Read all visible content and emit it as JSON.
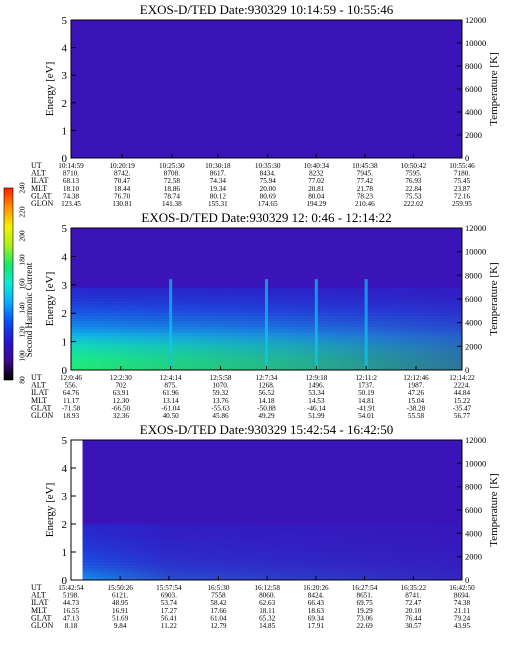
{
  "colorbar": {
    "label": "Second Harmonic Current",
    "ticks": [
      "80",
      "100",
      "120",
      "140",
      "160",
      "180",
      "200",
      "220",
      "240"
    ],
    "colors": [
      "#000000",
      "#3b0a8c",
      "#2a14d0",
      "#0a4cf0",
      "#0aa8ff",
      "#10e8d8",
      "#18e868",
      "#a8f020",
      "#f8f000",
      "#ff9000",
      "#ff2000"
    ]
  },
  "palette": {
    "background": "#3a14b8",
    "low_energy_band": [
      "#1430e0",
      "#0a6cf8",
      "#0ac8f0",
      "#18e890",
      "#30f040"
    ]
  },
  "chart_data": [
    {
      "type": "heatmap",
      "title": "EXOS-D/TED   Date:930329   10:14:59 - 10:55:46",
      "ylabel": "Energy [eV]",
      "y2label": "Temperature [K]",
      "ylim": [
        0,
        5
      ],
      "y2lim": [
        0,
        12000
      ],
      "yticks": [
        "0",
        "1",
        "2",
        "3",
        "4",
        "5"
      ],
      "y2ticks": [
        "0",
        "2000",
        "4000",
        "6000",
        "8000",
        "10000",
        "12000"
      ],
      "intensity_profile": [
        [
          0,
          0.05
        ],
        [
          1,
          0.05
        ],
        [
          2,
          0.05
        ],
        [
          3,
          0.05
        ],
        [
          4,
          0.05
        ],
        [
          5,
          0.05
        ]
      ],
      "gap": null,
      "streaks": [],
      "params": [
        "UT",
        "ALT",
        "ILAT",
        "MLT",
        "GLAT",
        "GLON"
      ],
      "columns": [
        [
          "10:14:59",
          "8710.",
          "68.13",
          "18.10",
          "74.38",
          "123.45"
        ],
        [
          "10:20:19",
          "8742.",
          "70.47",
          "18.44",
          "76.70",
          "130.81"
        ],
        [
          "10:25:30",
          "8708.",
          "72.58",
          "18.86",
          "78.74",
          "141.38"
        ],
        [
          "10:30:18",
          "8617.",
          "74.34",
          "19.34",
          "80.12",
          "155.31"
        ],
        [
          "10:35:30",
          "8434.",
          "75.94",
          "20.00",
          "80.69",
          "174.65"
        ],
        [
          "10:40:34",
          "8232",
          "77.02",
          "20.81",
          "80.04",
          "194.29"
        ],
        [
          "10:45:38",
          "7945.",
          "77.42",
          "21.78",
          "78.23",
          "210.46"
        ],
        [
          "10:50:42",
          "7595.",
          "76.93",
          "22.84",
          "75.53",
          "222.02"
        ],
        [
          "10:55:46",
          "7180.",
          "75.45",
          "23.87",
          "72.16",
          "259.95"
        ]
      ]
    },
    {
      "type": "heatmap",
      "title": "EXOS-D/TED   Date:930329   12: 0:46 - 12:14:22",
      "ylabel": "Energy [eV]",
      "y2label": "Temperature [K]",
      "ylim": [
        0,
        5
      ],
      "y2lim": [
        0,
        12000
      ],
      "yticks": [
        "0",
        "1",
        "2",
        "3",
        "4",
        "5"
      ],
      "y2ticks": [
        "0",
        "2000",
        "4000",
        "6000",
        "8000",
        "10000",
        "12000"
      ],
      "intensity_profile": [
        [
          0,
          0.85
        ],
        [
          0.5,
          0.75
        ],
        [
          1.0,
          0.6
        ],
        [
          1.5,
          0.42
        ],
        [
          2.0,
          0.3
        ],
        [
          2.5,
          0.15
        ],
        [
          3,
          0.05
        ],
        [
          5,
          0.05
        ]
      ],
      "gap": null,
      "streaks": [
        "12:4:14",
        "12:7:34",
        "12:9:18",
        "12:11:2"
      ],
      "params": [
        "UT",
        "ALT",
        "ILAT",
        "MLT",
        "GLAT",
        "GLON"
      ],
      "columns": [
        [
          "12:0:46",
          "556.",
          "64.76",
          "11.17",
          "-71.58",
          "18.93"
        ],
        [
          "12:2:30",
          "702",
          "63.91",
          "12.30",
          "-66.50",
          "32.36"
        ],
        [
          "12:4:14",
          "875.",
          "61.96",
          "13.14",
          "-61.04",
          "40.50"
        ],
        [
          "12:5:58",
          "1070.",
          "59.32",
          "13.76",
          "-55.63",
          "45.86"
        ],
        [
          "12:7:34",
          "1268.",
          "56.52",
          "14.18",
          "-50.88",
          "49.29"
        ],
        [
          "12:9:18",
          "1496.",
          "53.34",
          "14.53",
          "-46.14",
          "51.99"
        ],
        [
          "12:11:2",
          "1737.",
          "50.19",
          "14.81",
          "-41.91",
          "54.01"
        ],
        [
          "12:12:46",
          "1987.",
          "47.26",
          "15.04",
          "-38.28",
          "55.58"
        ],
        [
          "12:14:22",
          "2224.",
          "44.84",
          "15.22",
          "-35.47",
          "56.77"
        ]
      ]
    },
    {
      "type": "heatmap",
      "title": "EXOS-D/TED   Date:930329   15:42:54 - 16:42:50",
      "ylabel": "Energy [eV]",
      "y2label": "Temperature [K]",
      "ylim": [
        0,
        5
      ],
      "y2lim": [
        0,
        12000
      ],
      "yticks": [
        "0",
        "1",
        "2",
        "3",
        "4",
        "5"
      ],
      "y2ticks": [
        "0",
        "2000",
        "4000",
        "6000",
        "8000",
        "10000",
        "12000"
      ],
      "intensity_profile": [
        [
          0,
          0.45
        ],
        [
          0.5,
          0.3
        ],
        [
          1.0,
          0.2
        ],
        [
          1.5,
          0.12
        ],
        [
          2,
          0.06
        ],
        [
          5,
          0.05
        ]
      ],
      "gap": [
        "15:42:54",
        "15:44:40"
      ],
      "streaks": [],
      "params": [
        "UT",
        "ALT",
        "ILAT",
        "MLT",
        "GLAT",
        "GLON"
      ],
      "columns": [
        [
          "15:42:54",
          "5198.",
          "44.73",
          "16.55",
          "47.13",
          "8.18"
        ],
        [
          "15:50:26",
          "6121.",
          "48.95",
          "16.91",
          "51.69",
          "9.84"
        ],
        [
          "15:57:54",
          "6903.",
          "53.74",
          "17.27",
          "56.41",
          "11.22"
        ],
        [
          "16:5:30",
          "7558",
          "58.42",
          "17.66",
          "61.04",
          "12.79"
        ],
        [
          "16:12:58",
          "8060.",
          "62.63",
          "18.11",
          "65.32",
          "14.85"
        ],
        [
          "16:20:26",
          "8424.",
          "66.43",
          "18.63",
          "69.34",
          "17.91"
        ],
        [
          "16:27:54",
          "8651.",
          "69.75",
          "19.29",
          "73.06",
          "22.69"
        ],
        [
          "16:35:22",
          "8741.",
          "72.47",
          "20.10",
          "76.44",
          "30.57"
        ],
        [
          "16:42:50",
          "8694.",
          "74.38",
          "21.11",
          "79.24",
          "43.95"
        ]
      ]
    }
  ]
}
